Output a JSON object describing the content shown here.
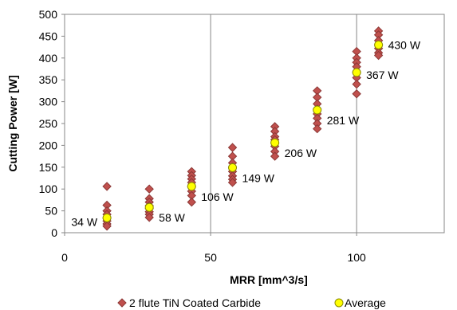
{
  "chart_data": {
    "type": "scatter",
    "xlabel": "MRR [mm^3/s]",
    "ylabel": "Cutting Power [W]",
    "xlim": [
      0,
      130
    ],
    "ylim": [
      0,
      500
    ],
    "x_ticks": [
      0,
      50,
      100
    ],
    "y_ticks": [
      0,
      50,
      100,
      150,
      200,
      250,
      300,
      350,
      400,
      450,
      500
    ],
    "grid": "vertical",
    "legend_position": "bottom",
    "series": [
      {
        "name": "2 flute TiN Coated Carbide",
        "marker": "diamond",
        "color": "#c0504d",
        "edge_color": "#8c3836",
        "points": [
          [
            14.5,
            106
          ],
          [
            14.5,
            63
          ],
          [
            14.5,
            50
          ],
          [
            14.5,
            42
          ],
          [
            14.5,
            33
          ],
          [
            14.5,
            27
          ],
          [
            14.5,
            20
          ],
          [
            14.5,
            15
          ],
          [
            29,
            100
          ],
          [
            29,
            78
          ],
          [
            29,
            70
          ],
          [
            29,
            62
          ],
          [
            29,
            55
          ],
          [
            29,
            48
          ],
          [
            29,
            42
          ],
          [
            29,
            35
          ],
          [
            43.5,
            140
          ],
          [
            43.5,
            131
          ],
          [
            43.5,
            123
          ],
          [
            43.5,
            115
          ],
          [
            43.5,
            105
          ],
          [
            43.5,
            95
          ],
          [
            43.5,
            85
          ],
          [
            43.5,
            70
          ],
          [
            57.5,
            195
          ],
          [
            57.5,
            175
          ],
          [
            57.5,
            160
          ],
          [
            57.5,
            150
          ],
          [
            57.5,
            140
          ],
          [
            57.5,
            130
          ],
          [
            57.5,
            122
          ],
          [
            57.5,
            115
          ],
          [
            72,
            243
          ],
          [
            72,
            232
          ],
          [
            72,
            220
          ],
          [
            72,
            213
          ],
          [
            72,
            205
          ],
          [
            72,
            198
          ],
          [
            72,
            186
          ],
          [
            72,
            175
          ],
          [
            86.5,
            325
          ],
          [
            86.5,
            310
          ],
          [
            86.5,
            295
          ],
          [
            86.5,
            283
          ],
          [
            86.5,
            272
          ],
          [
            86.5,
            262
          ],
          [
            86.5,
            250
          ],
          [
            86.5,
            238
          ],
          [
            100,
            415
          ],
          [
            100,
            400
          ],
          [
            100,
            390
          ],
          [
            100,
            380
          ],
          [
            100,
            367
          ],
          [
            100,
            355
          ],
          [
            100,
            340
          ],
          [
            100,
            318
          ],
          [
            107.5,
            462
          ],
          [
            107.5,
            453
          ],
          [
            107.5,
            440
          ],
          [
            107.5,
            430
          ],
          [
            107.5,
            422
          ],
          [
            107.5,
            412
          ],
          [
            107.5,
            406
          ]
        ]
      },
      {
        "name": "Average",
        "marker": "circle",
        "color": "#ffff00",
        "edge_color": "#8a8a00",
        "points": [
          [
            14.5,
            34
          ],
          [
            29,
            58
          ],
          [
            43.5,
            106
          ],
          [
            57.5,
            149
          ],
          [
            72,
            206
          ],
          [
            86.5,
            281
          ],
          [
            100,
            367
          ],
          [
            107.5,
            430
          ]
        ],
        "labels": [
          "34 W",
          "58 W",
          "106 W",
          "149 W",
          "206 W",
          "281 W",
          "367 W",
          "430 W"
        ]
      }
    ]
  }
}
